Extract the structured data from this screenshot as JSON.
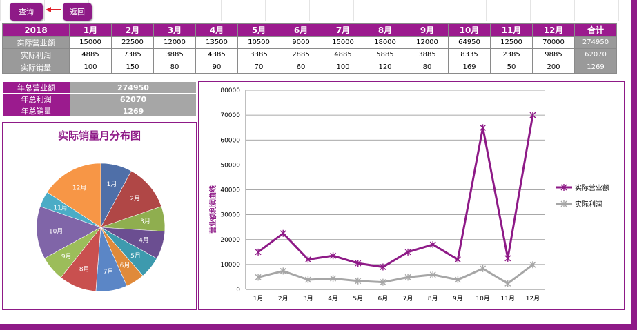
{
  "toolbar": {
    "query_label": "查询",
    "back_label": "返回"
  },
  "table": {
    "year": "2018",
    "months": [
      "1月",
      "2月",
      "3月",
      "4月",
      "5月",
      "6月",
      "7月",
      "8月",
      "9月",
      "10月",
      "11月",
      "12月"
    ],
    "total_header": "合计",
    "rows": [
      {
        "label": "实际营业额",
        "values": [
          "15000",
          "22500",
          "12000",
          "13500",
          "10500",
          "9000",
          "15000",
          "18000",
          "12000",
          "64950",
          "12500",
          "70000"
        ],
        "total": "274950"
      },
      {
        "label": "实际利润",
        "values": [
          "4885",
          "7385",
          "3885",
          "4385",
          "3385",
          "2885",
          "4885",
          "5885",
          "3885",
          "8335",
          "2385",
          "9885"
        ],
        "total": "62070"
      },
      {
        "label": "实际销量",
        "values": [
          "100",
          "150",
          "80",
          "90",
          "70",
          "60",
          "100",
          "120",
          "80",
          "169",
          "50",
          "200"
        ],
        "total": "1269"
      }
    ]
  },
  "summary": [
    {
      "label": "年总营业额",
      "value": "274950"
    },
    {
      "label": "年总利润",
      "value": "62070"
    },
    {
      "label": "年总销量",
      "value": "1269"
    }
  ],
  "chart_data": [
    {
      "type": "pie",
      "title": "实际销量月分布图",
      "categories": [
        "1月",
        "2月",
        "3月",
        "4月",
        "5月",
        "6月",
        "7月",
        "8月",
        "9月",
        "10月",
        "11月",
        "12月"
      ],
      "values": [
        100,
        150,
        80,
        90,
        70,
        60,
        100,
        120,
        80,
        169,
        50,
        200
      ],
      "colors": [
        "#4f6fa8",
        "#b04746",
        "#8fae4f",
        "#6b4e91",
        "#3d9aae",
        "#e08a3a",
        "#5b86c6",
        "#c9504f",
        "#9cbd5a",
        "#8065a8",
        "#4bacc6",
        "#f79646"
      ],
      "legend": "none"
    },
    {
      "type": "line",
      "title": "",
      "ylabel": "营业额利润曲线",
      "x": [
        "1月",
        "2月",
        "3月",
        "4月",
        "5月",
        "6月",
        "7月",
        "8月",
        "9月",
        "10月",
        "11月",
        "12月"
      ],
      "ylim": [
        0,
        80000
      ],
      "yticks": [
        "0",
        "10000",
        "20000",
        "30000",
        "40000",
        "50000",
        "60000",
        "70000",
        "80000"
      ],
      "grid": true,
      "legend": "right",
      "series": [
        {
          "name": "实际营业额",
          "color": "#8e1a87",
          "values": [
            15000,
            22500,
            12000,
            13500,
            10500,
            9000,
            15000,
            18000,
            12000,
            64950,
            12500,
            70000
          ]
        },
        {
          "name": "实际利润",
          "color": "#a6a6a6",
          "values": [
            4885,
            7385,
            3885,
            4385,
            3385,
            2885,
            4885,
            5885,
            3885,
            8335,
            2385,
            9885
          ]
        }
      ]
    }
  ]
}
